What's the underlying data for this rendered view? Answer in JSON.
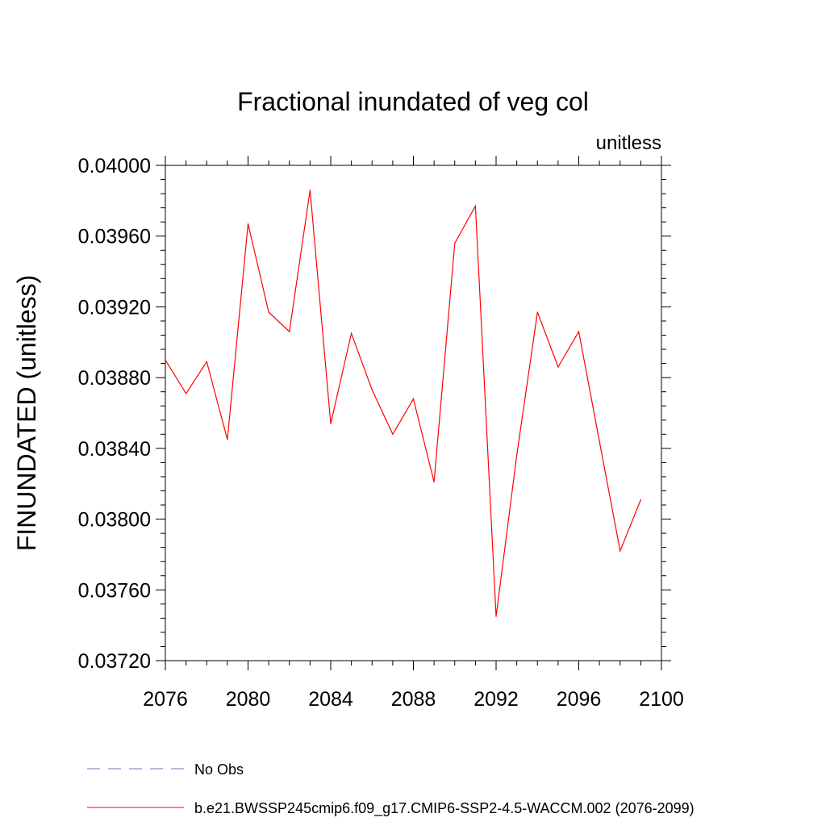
{
  "chart_data": {
    "type": "line",
    "title": "Fractional inundated of veg col",
    "units_label": "unitless",
    "ylabel": "FINUNDATED  (unitless)",
    "xlabel": "",
    "xlim": [
      2076,
      2100
    ],
    "ylim": [
      0.0372,
      0.04
    ],
    "x_ticks": [
      "2076",
      "2080",
      "2084",
      "2088",
      "2092",
      "2096",
      "2100"
    ],
    "y_ticks": [
      "0.03720",
      "0.03760",
      "0.03800",
      "0.03840",
      "0.03880",
      "0.03920",
      "0.03960",
      "0.04000"
    ],
    "grid": false,
    "legend_position": "bottom",
    "series": [
      {
        "name": "b.e21.BWSSP245cmip6.f09_g17.CMIP6-SSP2-4.5-WACCM.002 (2076-2099)",
        "color": "#ff0000",
        "style": "solid",
        "x": [
          2076,
          2077,
          2078,
          2079,
          2080,
          2081,
          2082,
          2083,
          2084,
          2085,
          2086,
          2087,
          2088,
          2089,
          2090,
          2091,
          2092,
          2093,
          2094,
          2095,
          2096,
          2097,
          2098,
          2099
        ],
        "values": [
          0.0389,
          0.03871,
          0.03889,
          0.03845,
          0.03967,
          0.03917,
          0.03906,
          0.03986,
          0.03854,
          0.03905,
          0.03873,
          0.03848,
          0.03868,
          0.03821,
          0.03956,
          0.03977,
          0.03745,
          0.03836,
          0.03917,
          0.03886,
          0.03906,
          0.03844,
          0.03782,
          0.03811
        ]
      }
    ],
    "legend": [
      {
        "label": "No Obs",
        "color": "#7a6fbf",
        "style": "dashed"
      },
      {
        "label": "b.e21.BWSSP245cmip6.f09_g17.CMIP6-SSP2-4.5-WACCM.002 (2076-2099)",
        "color": "#ff0000",
        "style": "solid"
      }
    ]
  }
}
